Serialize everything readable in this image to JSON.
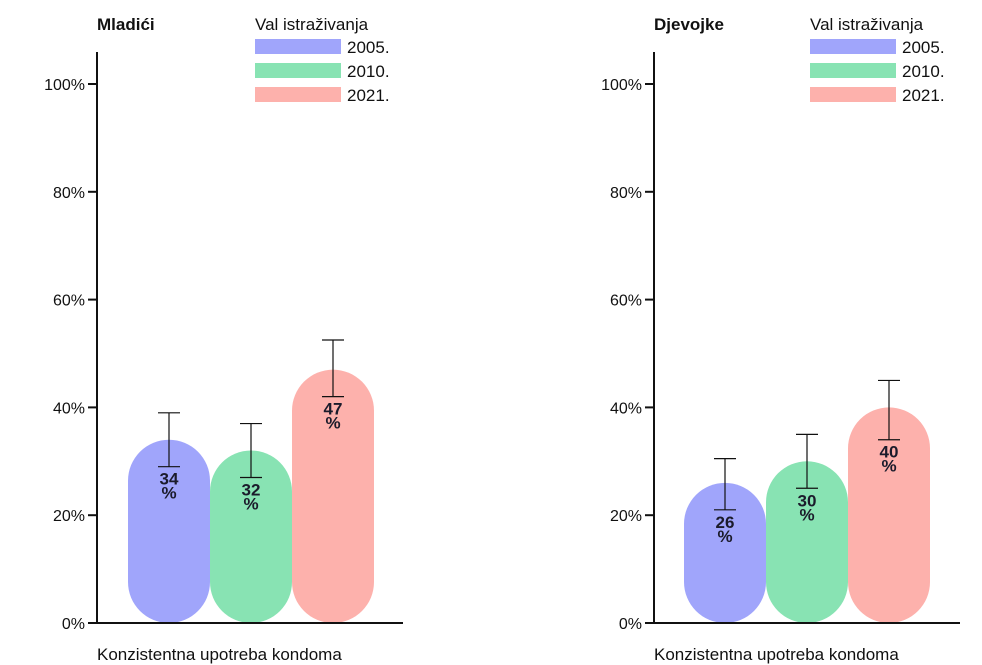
{
  "colors": {
    "s2005": "#a0a5fb",
    "s2010": "#88e3b3",
    "s2021": "#fdb1ac",
    "axis": "#111111"
  },
  "legend_title": "Val istraživanja",
  "chart_data": [
    {
      "type": "bar",
      "title": "Mladići",
      "xlabel": "Konzistentna upotreba kondoma",
      "ylim": [
        0,
        100
      ],
      "yticks": [
        0,
        20,
        40,
        60,
        80,
        100
      ],
      "ytick_labels": [
        "0%",
        "20%",
        "40%",
        "60%",
        "80%",
        "100%"
      ],
      "categories": [
        "Konzistentna upotreba kondoma"
      ],
      "series": [
        {
          "name": "2005.",
          "values": [
            34
          ],
          "error_low": [
            29
          ],
          "error_high": [
            39
          ],
          "label": "34 %"
        },
        {
          "name": "2010.",
          "values": [
            32
          ],
          "error_low": [
            27
          ],
          "error_high": [
            37
          ],
          "label": "32 %"
        },
        {
          "name": "2021.",
          "values": [
            47
          ],
          "error_low": [
            42
          ],
          "error_high": [
            52.5
          ],
          "label": "47 %"
        }
      ],
      "legend": {
        "title": "Val istraživanja",
        "position": "top-right"
      }
    },
    {
      "type": "bar",
      "title": "Djevojke",
      "xlabel": "Konzistentna upotreba kondoma",
      "ylim": [
        0,
        100
      ],
      "yticks": [
        0,
        20,
        40,
        60,
        80,
        100
      ],
      "ytick_labels": [
        "0%",
        "20%",
        "40%",
        "60%",
        "80%",
        "100%"
      ],
      "categories": [
        "Konzistentna upotreba kondoma"
      ],
      "series": [
        {
          "name": "2005.",
          "values": [
            26
          ],
          "error_low": [
            21
          ],
          "error_high": [
            30.5
          ],
          "label": "26 %"
        },
        {
          "name": "2010.",
          "values": [
            30
          ],
          "error_low": [
            25
          ],
          "error_high": [
            35
          ],
          "label": "30 %"
        },
        {
          "name": "2021.",
          "values": [
            40
          ],
          "error_low": [
            34
          ],
          "error_high": [
            45
          ],
          "label": "40 %"
        }
      ],
      "legend": {
        "title": "Val istraživanja",
        "position": "top-right"
      }
    }
  ]
}
